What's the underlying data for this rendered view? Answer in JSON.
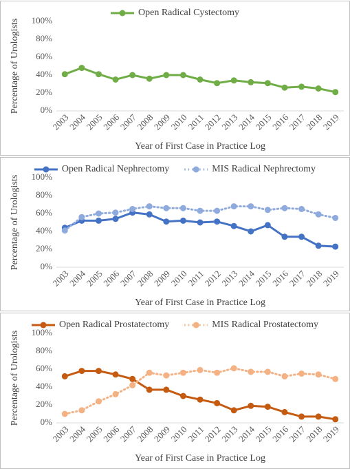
{
  "chart_data": [
    {
      "type": "line",
      "legend": "top",
      "grid": false,
      "x_label": "Year of First Case in Practice Log",
      "y_label": "Percentage of Urologists",
      "categories": [
        "2003",
        "2004",
        "2005",
        "2006",
        "2007",
        "2008",
        "2009",
        "2010",
        "2011",
        "2012",
        "2013",
        "2014",
        "2015",
        "2016",
        "2017",
        "2018",
        "2019"
      ],
      "ylim": [
        0,
        100
      ],
      "yticks": [
        {
          "value": 0,
          "label": "0%"
        },
        {
          "value": 20,
          "label": "20%"
        },
        {
          "value": 40,
          "label": "40%"
        },
        {
          "value": 60,
          "label": "60%"
        },
        {
          "value": 80,
          "label": "80%"
        },
        {
          "value": 100,
          "label": "100%"
        }
      ],
      "series": [
        {
          "name": "Open Radical Cystectomy",
          "color": "#70ad47",
          "line_style": "solid",
          "values": [
            41,
            48,
            41,
            35,
            40,
            36,
            40,
            40,
            35,
            31,
            34,
            32,
            31,
            26,
            27,
            25,
            21
          ]
        }
      ]
    },
    {
      "type": "line",
      "legend": "top",
      "grid": false,
      "x_label": "Year of First Case in Practice Log",
      "y_label": "Percentage of Urologists",
      "categories": [
        "2003",
        "2004",
        "2005",
        "2006",
        "2007",
        "2008",
        "2009",
        "2010",
        "2011",
        "2012",
        "2013",
        "2014",
        "2015",
        "2016",
        "2017",
        "2018",
        "2019"
      ],
      "ylim": [
        0,
        100
      ],
      "yticks": [
        {
          "value": 0,
          "label": "0%"
        },
        {
          "value": 20,
          "label": "20%"
        },
        {
          "value": 40,
          "label": "40%"
        },
        {
          "value": 60,
          "label": "60%"
        },
        {
          "value": 80,
          "label": "80%"
        },
        {
          "value": 100,
          "label": "100%"
        }
      ],
      "series": [
        {
          "name": "Open Radical Nephrectomy",
          "color": "#4472c4",
          "line_style": "solid",
          "values": [
            44,
            52,
            52,
            54,
            61,
            59,
            51,
            52,
            50,
            51,
            46,
            40,
            47,
            34,
            34,
            24,
            23
          ]
        },
        {
          "name": "MIS Radical Nephrectomy",
          "color": "#8faadc",
          "line_style": "dotted",
          "values": [
            41,
            56,
            60,
            61,
            65,
            68,
            66,
            66,
            63,
            63,
            68,
            68,
            64,
            66,
            65,
            59,
            55
          ]
        }
      ]
    },
    {
      "type": "line",
      "legend": "top",
      "grid": false,
      "x_label": "Year of First Case in Practice Log",
      "y_label": "Percentage of Urologists",
      "categories": [
        "2003",
        "2004",
        "2005",
        "2006",
        "2007",
        "2008",
        "2009",
        "2010",
        "2011",
        "2012",
        "2013",
        "2014",
        "2015",
        "2016",
        "2017",
        "2018",
        "2019"
      ],
      "ylim": [
        0,
        100
      ],
      "yticks": [
        {
          "value": 0,
          "label": "0%"
        },
        {
          "value": 20,
          "label": "20%"
        },
        {
          "value": 40,
          "label": "40%"
        },
        {
          "value": 60,
          "label": "60%"
        },
        {
          "value": 80,
          "label": "80%"
        },
        {
          "value": 100,
          "label": "100%"
        }
      ],
      "series": [
        {
          "name": "Open Radical Prostatectomy",
          "color": "#c55a11",
          "line_style": "solid",
          "values": [
            52,
            58,
            58,
            54,
            49,
            37,
            37,
            30,
            26,
            22,
            14,
            19,
            18,
            12,
            7,
            7,
            4
          ]
        },
        {
          "name": "MIS Radical Prostatectomy",
          "color": "#f4b183",
          "line_style": "dotted",
          "values": [
            10,
            14,
            24,
            32,
            42,
            56,
            53,
            56,
            59,
            56,
            61,
            57,
            57,
            52,
            55,
            54,
            49
          ]
        }
      ]
    }
  ]
}
